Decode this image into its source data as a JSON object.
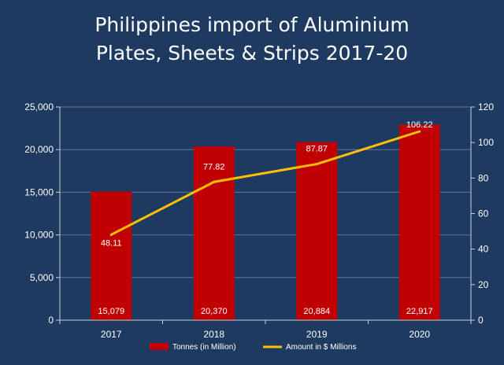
{
  "chart_data": {
    "type": "bar",
    "title_lines": [
      "Philippines import of Aluminium",
      "Plates, Sheets & Strips 2017-20"
    ],
    "categories": [
      "2017",
      "2018",
      "2019",
      "2020"
    ],
    "series": [
      {
        "name": "Tonnes (in Million)",
        "type": "bar",
        "axis": "left",
        "values": [
          15079,
          20370,
          20884,
          22917
        ],
        "labels": [
          "15,079",
          "20,370",
          "20,884",
          "22,917"
        ],
        "color": "#c00000"
      },
      {
        "name": "Amount in $ Millions",
        "type": "line",
        "axis": "right",
        "values": [
          48.11,
          77.82,
          87.87,
          106.22
        ],
        "labels": [
          "48.11",
          "77.82",
          "87.87",
          "106.22"
        ],
        "color": "#ffc000"
      }
    ],
    "y_left": {
      "ylim": [
        0,
        25000
      ],
      "ticks": [
        0,
        5000,
        10000,
        15000,
        20000,
        25000
      ],
      "tick_labels": [
        "0",
        "5,000",
        "10,000",
        "15,000",
        "20,000",
        "25,000"
      ]
    },
    "y_right": {
      "ylim": [
        0,
        120
      ],
      "ticks": [
        0,
        20,
        40,
        60,
        80,
        100,
        120
      ],
      "tick_labels": [
        "0",
        "20",
        "40",
        "60",
        "80",
        "100",
        "120"
      ]
    },
    "grid": true,
    "legend_position": "bottom",
    "colors": {
      "background": "#1f3a60",
      "grid": "#5f7595",
      "axis": "#c8d0dc"
    }
  }
}
